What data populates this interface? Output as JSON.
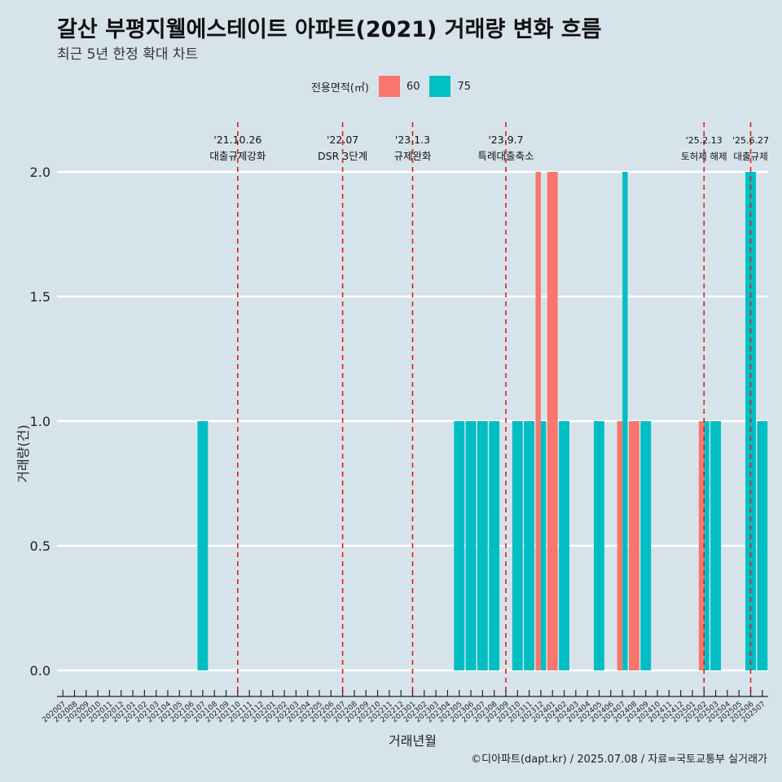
{
  "title": "갈산 부평지웰에스테이트 아파트(2021) 거래량 변화 흐름",
  "subtitle": "최근 5년 한정 확대 차트",
  "legend": {
    "title": "전용면적(㎡)",
    "items": [
      {
        "label": "60",
        "color": "#f8766d"
      },
      {
        "label": "75",
        "color": "#00bfc4"
      }
    ]
  },
  "caption": "©디아파트(dapt.kr) / 2025.07.08 / 자료=국토교통부 실거래가",
  "chart_data": {
    "type": "bar",
    "title": "갈산 부평지웰에스테이트 아파트(2021) 거래량 변화 흐름",
    "subtitle": "최근 5년 한정 확대 차트",
    "xlabel": "거래년월",
    "ylabel": "거래량(건)",
    "ylim": [
      0,
      2
    ],
    "yticks": [
      0.0,
      0.5,
      1.0,
      1.5,
      2.0
    ],
    "ytick_labels": [
      "0.0",
      "0.5",
      "1.0",
      "1.5",
      "2.0"
    ],
    "grid": true,
    "legend_position": "top",
    "categories": [
      "202007",
      "202008",
      "202009",
      "202010",
      "202011",
      "202012",
      "202101",
      "202102",
      "202103",
      "202104",
      "202105",
      "202106",
      "202107",
      "202108",
      "202109",
      "202110",
      "202111",
      "202112",
      "202201",
      "202202",
      "202203",
      "202204",
      "202205",
      "202206",
      "202207",
      "202208",
      "202209",
      "202210",
      "202211",
      "202212",
      "202301",
      "202302",
      "202303",
      "202304",
      "202305",
      "202306",
      "202307",
      "202308",
      "202309",
      "202310",
      "202311",
      "202312",
      "202401",
      "202402",
      "202403",
      "202404",
      "202405",
      "202406",
      "202407",
      "202408",
      "202409",
      "202410",
      "202411",
      "202412",
      "202501",
      "202502",
      "202503",
      "202504",
      "202505",
      "202506",
      "202507"
    ],
    "series": [
      {
        "name": "60",
        "color": "#f8766d",
        "values": [
          0,
          0,
          0,
          0,
          0,
          0,
          0,
          0,
          0,
          0,
          0,
          0,
          0,
          0,
          0,
          0,
          0,
          0,
          0,
          0,
          0,
          0,
          0,
          0,
          0,
          0,
          0,
          0,
          0,
          0,
          0,
          0,
          0,
          0,
          0,
          0,
          0,
          0,
          0,
          0,
          0,
          2,
          2,
          0,
          0,
          0,
          0,
          0,
          1,
          1,
          0,
          0,
          0,
          0,
          0,
          1,
          0,
          0,
          0,
          0,
          0
        ]
      },
      {
        "name": "75",
        "color": "#00bfc4",
        "values": [
          0,
          0,
          0,
          0,
          0,
          0,
          0,
          0,
          0,
          0,
          0,
          0,
          1,
          0,
          0,
          0,
          0,
          0,
          0,
          0,
          0,
          0,
          0,
          0,
          0,
          0,
          0,
          0,
          0,
          0,
          0,
          0,
          0,
          0,
          1,
          1,
          1,
          1,
          0,
          1,
          1,
          1,
          0,
          1,
          0,
          0,
          1,
          0,
          2,
          0,
          1,
          0,
          0,
          0,
          0,
          1,
          1,
          0,
          0,
          2,
          1
        ]
      }
    ],
    "events": [
      {
        "date": "'21.10.26",
        "label": "대출규제강화",
        "month": "202110"
      },
      {
        "date": "'22.07",
        "label": "DSR 3단계",
        "month": "202207"
      },
      {
        "date": "'23.1.3",
        "label": "규제완화",
        "month": "202301"
      },
      {
        "date": "'23.9.7",
        "label": "특례대출축소",
        "month": "202309"
      },
      {
        "date": "'25.2.13",
        "label": "토허제 해제",
        "month": "202502"
      },
      {
        "date": "'25.6.27",
        "label": "대출규제",
        "month": "202506"
      }
    ]
  }
}
